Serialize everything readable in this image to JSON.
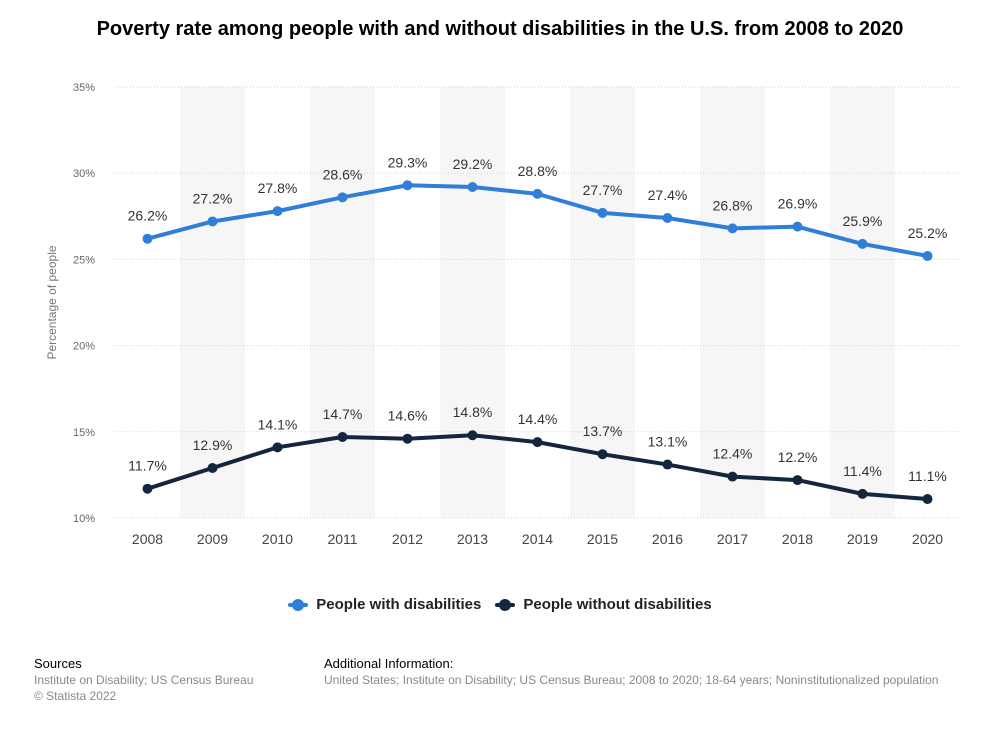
{
  "title": "Poverty rate among people with and without disabilities in the U.S. from 2008 to 2020",
  "chart_data": {
    "type": "line",
    "x": [
      "2008",
      "2009",
      "2010",
      "2011",
      "2012",
      "2013",
      "2014",
      "2015",
      "2016",
      "2017",
      "2018",
      "2019",
      "2020"
    ],
    "series": [
      {
        "name": "People with disabilities",
        "color": "#2f7ed8",
        "values": [
          26.2,
          27.2,
          27.8,
          28.6,
          29.3,
          29.2,
          28.8,
          27.7,
          27.4,
          26.8,
          26.9,
          25.9,
          25.2
        ],
        "labels": [
          "26.2%",
          "27.2%",
          "27.8%",
          "28.6%",
          "29.3%",
          "29.2%",
          "28.8%",
          "27.7%",
          "27.4%",
          "26.8%",
          "26.9%",
          "25.9%",
          "25.2%"
        ]
      },
      {
        "name": "People without disabilities",
        "color": "#13263d",
        "values": [
          11.7,
          12.9,
          14.1,
          14.7,
          14.6,
          14.8,
          14.4,
          13.7,
          13.1,
          12.4,
          12.2,
          11.4,
          11.1
        ],
        "labels": [
          "11.7%",
          "12.9%",
          "14.1%",
          "14.7%",
          "14.6%",
          "14.8%",
          "14.4%",
          "13.7%",
          "13.1%",
          "12.4%",
          "12.2%",
          "11.4%",
          "11.1%"
        ]
      }
    ],
    "ylabel": "Percentage of people",
    "xlabel": "",
    "ylim": [
      10,
      35
    ],
    "yticks": [
      10,
      15,
      20,
      25,
      30,
      35
    ],
    "ytick_labels": [
      "10%",
      "15%",
      "20%",
      "25%",
      "30%",
      "35%"
    ],
    "grid": true,
    "legend_position": "bottom-center"
  },
  "footer": {
    "sources_heading": "Sources",
    "sources_lines": [
      "Institute on Disability; US Census Bureau",
      "© Statista 2022"
    ],
    "info_heading": "Additional Information:",
    "info_text": "United States; Institute on Disability; US Census Bureau; 2008 to 2020; 18-64 years; Noninstitutionalized population"
  }
}
